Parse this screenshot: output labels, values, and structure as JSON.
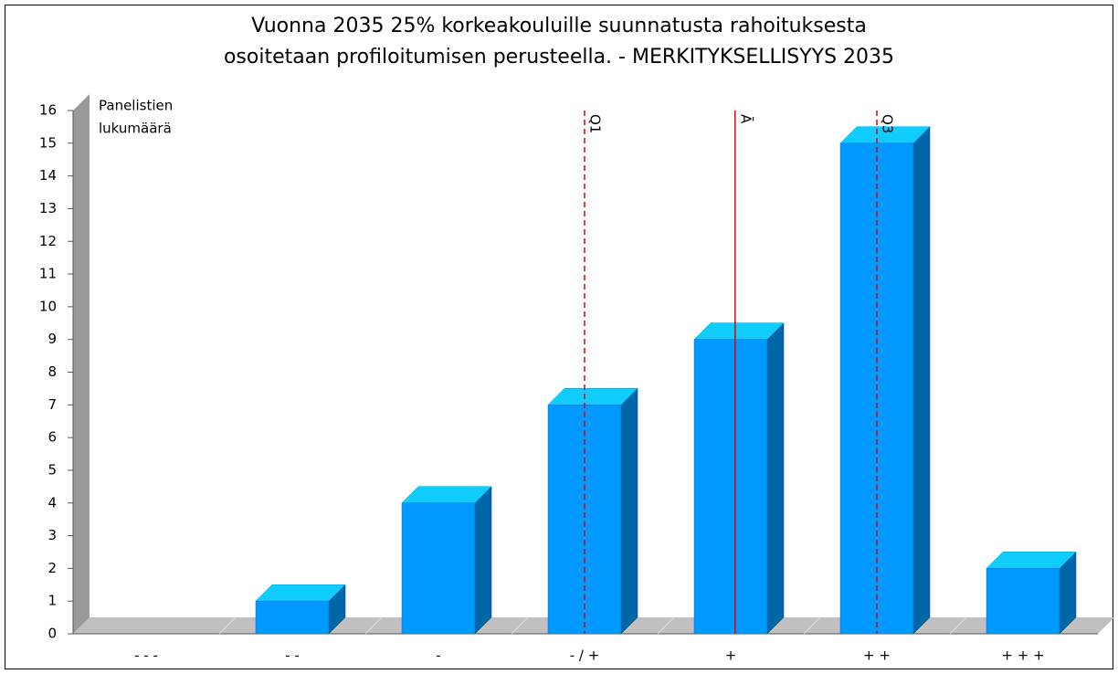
{
  "chart_data": {
    "type": "bar3d",
    "title": [
      "Vuonna 2035 25% korkeakouluille suunnatusta rahoituksesta",
      "osoitetaan profiloitumisen perusteella. - MERKITYKSELLISYYS 2035"
    ],
    "ylabel": [
      "Panelistien",
      "lukumäärä"
    ],
    "categories": [
      "- - -",
      "- -",
      "-",
      "- / +",
      "+",
      "+ +",
      "+ + +"
    ],
    "values": [
      0,
      1,
      4,
      7,
      9,
      15,
      2
    ],
    "color": "#0099ff",
    "ylim": [
      0,
      16
    ],
    "yticks": [
      0,
      1,
      2,
      3,
      4,
      5,
      6,
      7,
      8,
      9,
      10,
      11,
      12,
      13,
      14,
      15,
      16
    ],
    "markers": [
      {
        "label": "Q1",
        "x": 3,
        "style": "dashed"
      },
      {
        "label": "Ā",
        "x": 4.03,
        "style": "solid"
      },
      {
        "label": "Q3",
        "x": 5,
        "style": "dashed"
      }
    ]
  }
}
